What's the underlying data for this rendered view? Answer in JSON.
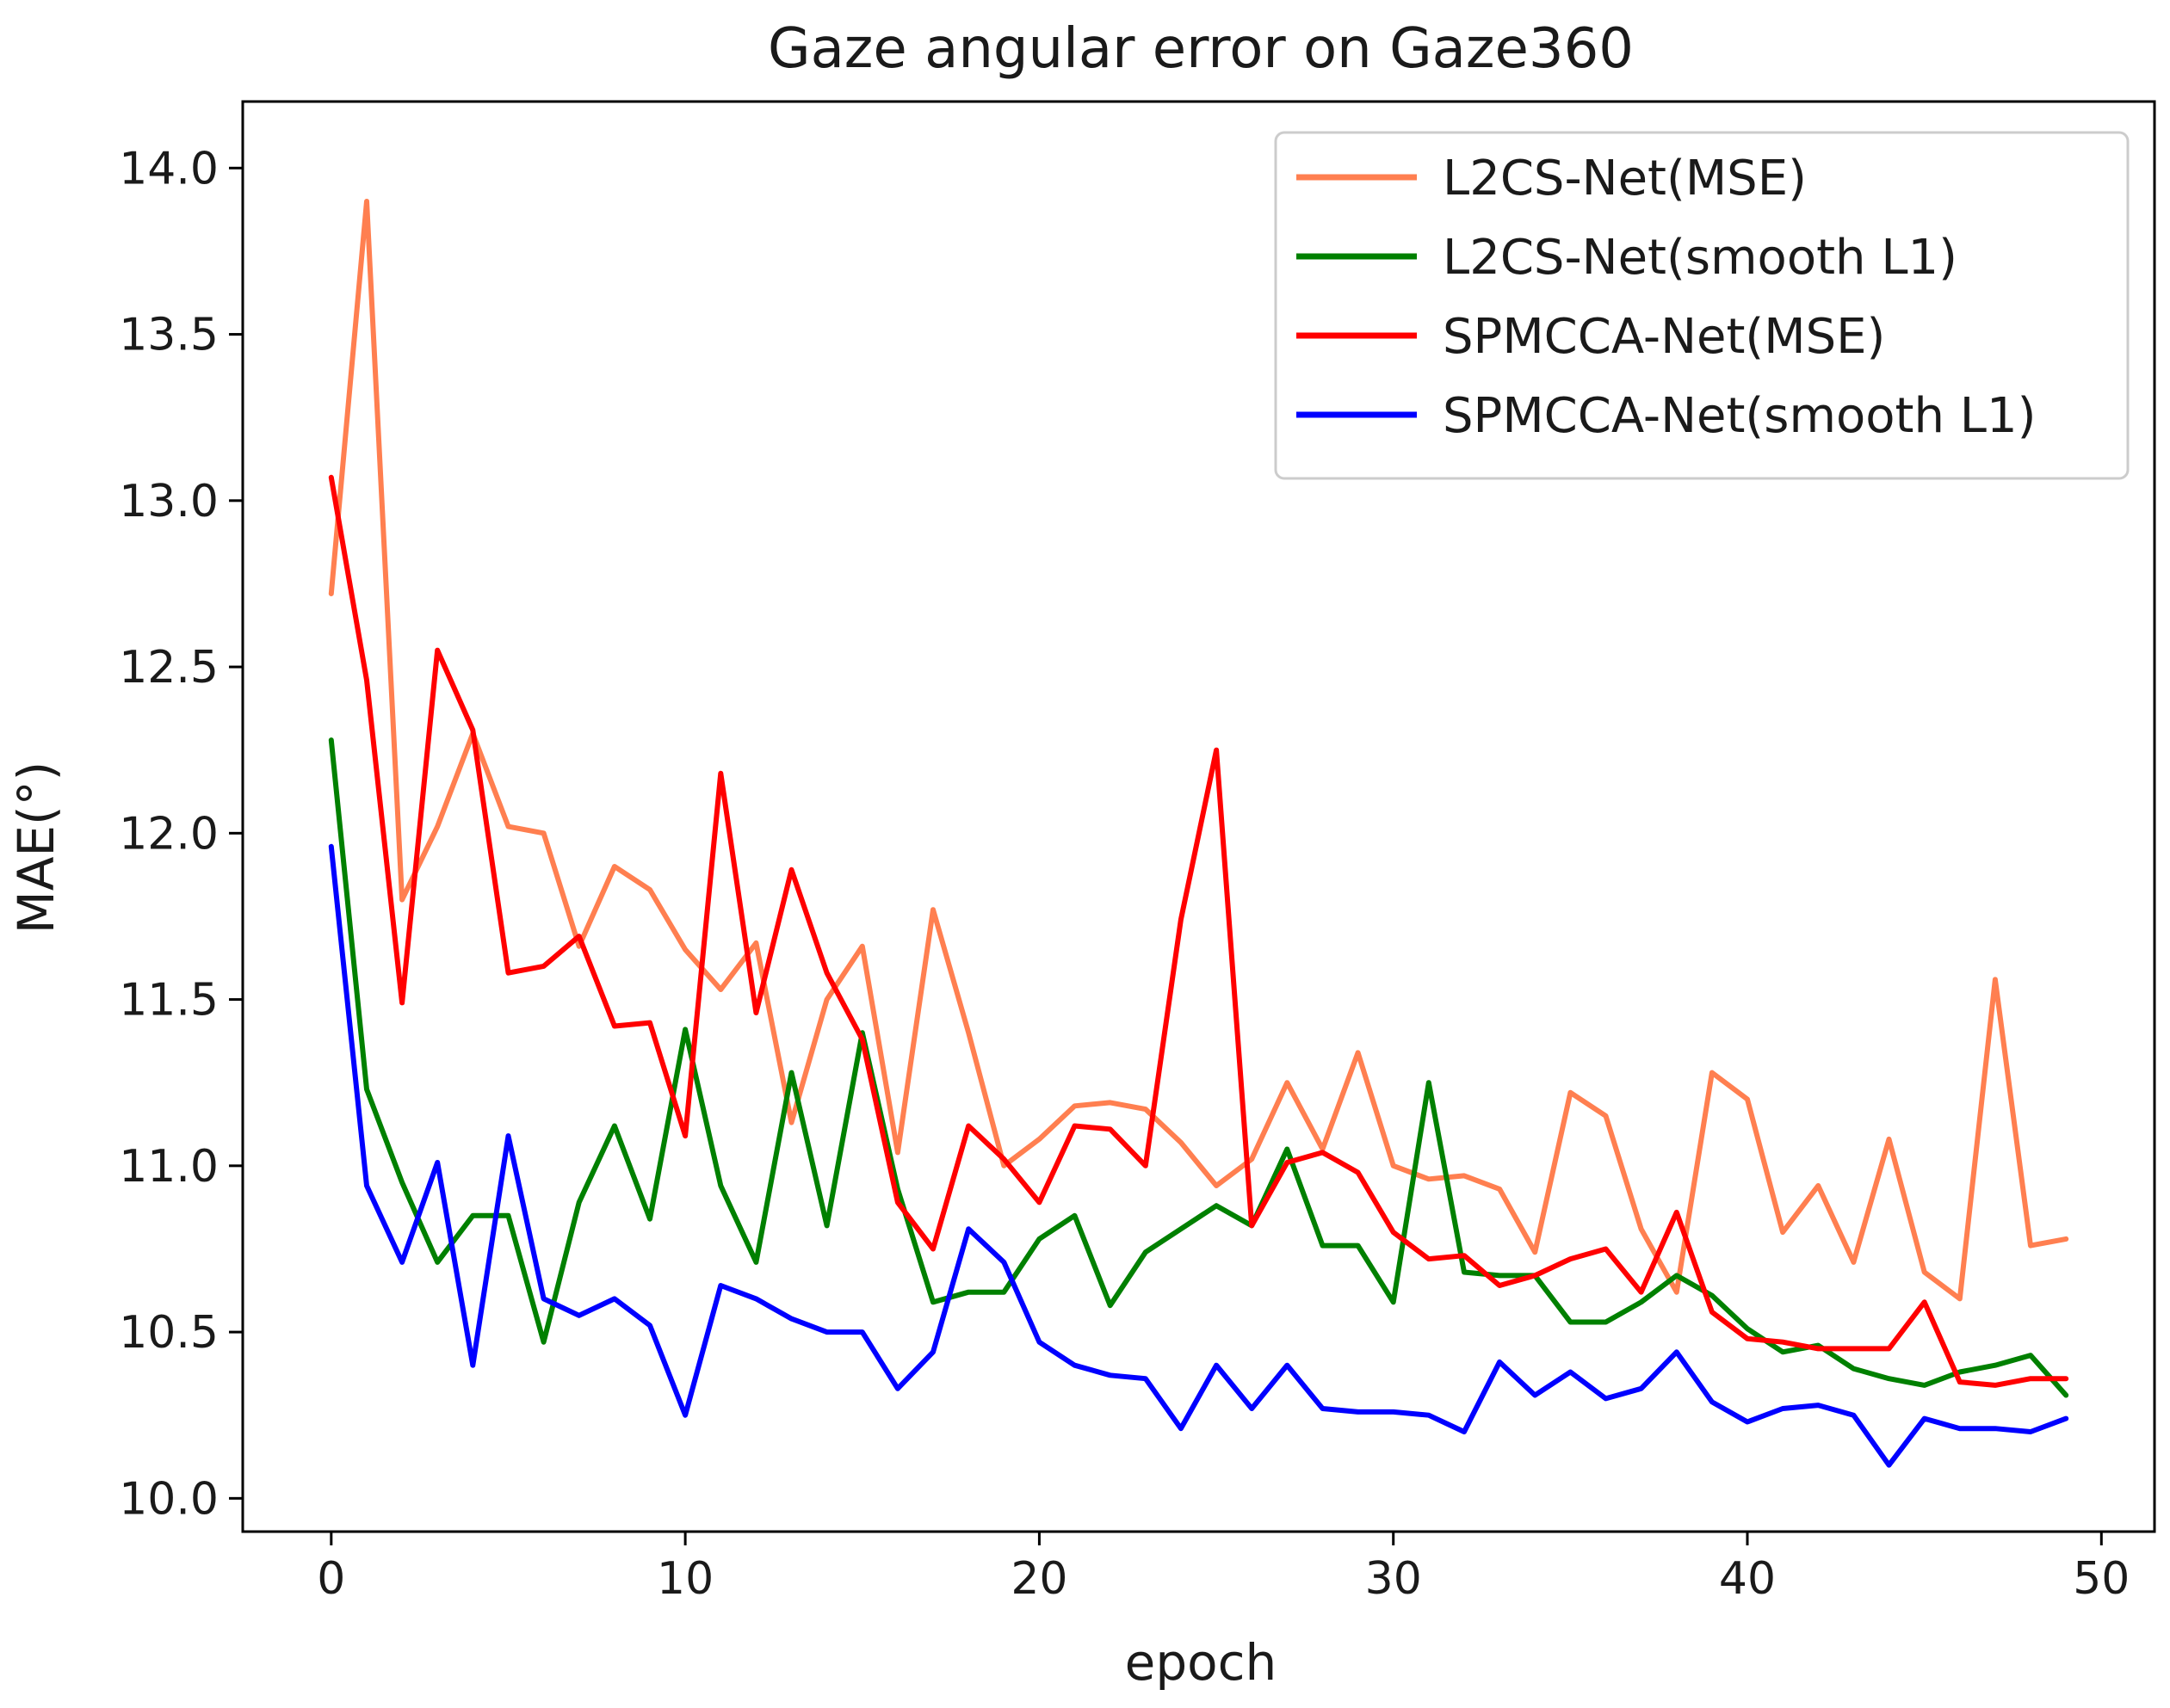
{
  "chart_data": {
    "type": "line",
    "title": "Gaze angular error on Gaze360",
    "xlabel": "epoch",
    "ylabel": "MAE(°)",
    "xlim": [
      -2.5,
      51.5
    ],
    "ylim": [
      9.9,
      14.2
    ],
    "xticks": [
      0,
      10,
      20,
      30,
      40,
      50
    ],
    "xtick_labels": [
      "0",
      "10",
      "20",
      "30",
      "40",
      "50"
    ],
    "yticks": [
      10.0,
      10.5,
      11.0,
      11.5,
      12.0,
      12.5,
      13.0,
      13.5,
      14.0
    ],
    "ytick_labels": [
      "10.0",
      "10.5",
      "11.0",
      "11.5",
      "12.0",
      "12.5",
      "13.0",
      "13.5",
      "14.0"
    ],
    "grid": false,
    "legend_position": "top-right",
    "x": [
      0,
      1,
      2,
      3,
      4,
      5,
      6,
      7,
      8,
      9,
      10,
      11,
      12,
      13,
      14,
      15,
      16,
      17,
      18,
      19,
      20,
      21,
      22,
      23,
      24,
      25,
      26,
      27,
      28,
      29,
      30,
      31,
      32,
      33,
      34,
      35,
      36,
      37,
      38,
      39,
      40,
      41,
      42,
      43,
      44,
      45,
      46,
      47,
      48,
      49
    ],
    "series": [
      {
        "name": "L2CS-Net(MSE)",
        "color": "#ff7f50",
        "values": [
          12.72,
          13.9,
          11.8,
          12.02,
          12.3,
          12.02,
          12.0,
          11.66,
          11.9,
          11.83,
          11.65,
          11.53,
          11.67,
          11.13,
          11.5,
          11.66,
          11.04,
          11.77,
          11.4,
          11.0,
          11.08,
          11.18,
          11.19,
          11.17,
          11.07,
          10.94,
          11.02,
          11.25,
          11.05,
          11.34,
          11.0,
          10.96,
          10.97,
          10.93,
          10.74,
          11.22,
          11.15,
          10.81,
          10.62,
          11.28,
          11.2,
          10.8,
          10.94,
          10.71,
          11.08,
          10.68,
          10.6,
          11.56,
          10.76,
          10.78
        ]
      },
      {
        "name": "L2CS-Net(smooth L1)",
        "color": "#008000",
        "values": [
          12.28,
          11.23,
          10.95,
          10.71,
          10.85,
          10.85,
          10.47,
          10.89,
          11.12,
          10.84,
          11.41,
          10.94,
          10.71,
          11.28,
          10.82,
          11.4,
          10.93,
          10.59,
          10.62,
          10.62,
          10.78,
          10.85,
          10.58,
          10.74,
          10.81,
          10.88,
          10.82,
          11.05,
          10.76,
          10.76,
          10.59,
          11.25,
          10.68,
          10.67,
          10.67,
          10.53,
          10.53,
          10.59,
          10.67,
          10.61,
          10.51,
          10.44,
          10.46,
          10.39,
          10.36,
          10.34,
          10.38,
          10.4,
          10.43,
          10.31
        ]
      },
      {
        "name": "SPMCCA-Net(MSE)",
        "color": "#ff0000",
        "values": [
          13.07,
          12.46,
          11.49,
          12.55,
          12.31,
          11.58,
          11.6,
          11.69,
          11.42,
          11.43,
          11.09,
          12.18,
          11.46,
          11.89,
          11.58,
          11.38,
          10.89,
          10.75,
          11.12,
          11.02,
          10.89,
          11.12,
          11.11,
          11.0,
          11.74,
          12.25,
          10.82,
          11.01,
          11.04,
          10.98,
          10.8,
          10.72,
          10.73,
          10.64,
          10.67,
          10.72,
          10.75,
          10.62,
          10.86,
          10.56,
          10.48,
          10.47,
          10.45,
          10.45,
          10.45,
          10.59,
          10.35,
          10.34,
          10.36,
          10.36
        ]
      },
      {
        "name": "SPMCCA-Net(smooth L1)",
        "color": "#0000ff",
        "values": [
          11.96,
          10.94,
          10.71,
          11.01,
          10.4,
          11.09,
          10.6,
          10.55,
          10.6,
          10.52,
          10.25,
          10.64,
          10.6,
          10.54,
          10.5,
          10.5,
          10.33,
          10.44,
          10.81,
          10.71,
          10.47,
          10.4,
          10.37,
          10.36,
          10.21,
          10.4,
          10.27,
          10.4,
          10.27,
          10.26,
          10.26,
          10.25,
          10.2,
          10.41,
          10.31,
          10.38,
          10.3,
          10.33,
          10.44,
          10.29,
          10.23,
          10.27,
          10.28,
          10.25,
          10.1,
          10.24,
          10.21,
          10.21,
          10.2,
          10.24
        ]
      }
    ]
  }
}
